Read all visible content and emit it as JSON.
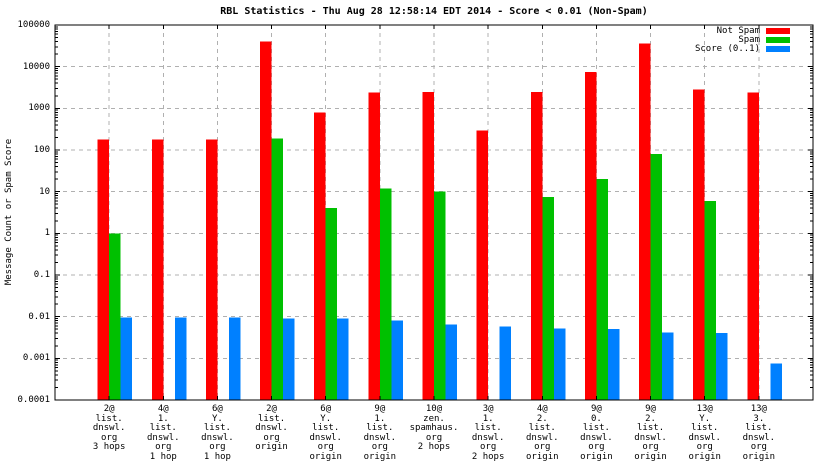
{
  "chart_data": {
    "type": "bar",
    "title": "RBL Statistics - Thu Aug 28 12:58:14 EDT 2014 - Score < 0.01 (Non-Spam)",
    "ylabel": "Message Count or Spam Score",
    "xlabel": "",
    "y_scale": "log",
    "ylim": [
      0.0001,
      100000
    ],
    "y_tick_labels": [
      "100000",
      "10000",
      "1000",
      "100",
      "10",
      "1",
      "0.1",
      "0.01",
      "0.001",
      "0.0001"
    ],
    "grid": true,
    "legend_position": "top-right-inside",
    "colors": {
      "axis": "#000000",
      "grid": "#b0b0b0",
      "background": "#ffffff"
    },
    "series": [
      {
        "name": "Not Spam",
        "key": "not_spam",
        "color": "#ff0000"
      },
      {
        "name": "Spam",
        "key": "spam",
        "color": "#00c000"
      },
      {
        "name": "Score (0..1)",
        "key": "score",
        "color": "#0080ff"
      }
    ],
    "groups": [
      {
        "label_lines": [
          "2@",
          "list.",
          "dnswl.",
          "org",
          "3 hops"
        ],
        "not_spam": 180,
        "spam": 1.0,
        "score": 0.0095
      },
      {
        "label_lines": [
          "4@",
          "1.",
          "list.",
          "dnswl.",
          "org",
          "1 hop"
        ],
        "not_spam": 180,
        "spam": null,
        "score": 0.0095
      },
      {
        "label_lines": [
          "6@",
          "Y.",
          "list.",
          "dnswl.",
          "org",
          "1 hop"
        ],
        "not_spam": 180,
        "spam": null,
        "score": 0.0095
      },
      {
        "label_lines": [
          "2@",
          "list.",
          "dnswl.",
          "org",
          "origin"
        ],
        "not_spam": 40000,
        "spam": 190,
        "score": 0.009
      },
      {
        "label_lines": [
          "6@",
          "Y.",
          "list.",
          "dnswl.",
          "org",
          "origin"
        ],
        "not_spam": 790,
        "spam": 4,
        "score": 0.009
      },
      {
        "label_lines": [
          "9@",
          "1.",
          "list.",
          "dnswl.",
          "org",
          "origin"
        ],
        "not_spam": 2400,
        "spam": 12,
        "score": 0.008
      },
      {
        "label_lines": [
          "10@",
          "zen.",
          "spamhaus.",
          "org",
          "2 hops"
        ],
        "not_spam": 2500,
        "spam": 10,
        "score": 0.0065
      },
      {
        "label_lines": [
          "3@",
          "1.",
          "list.",
          "dnswl.",
          "org",
          "2 hops"
        ],
        "not_spam": 290,
        "spam": null,
        "score": 0.0058
      },
      {
        "label_lines": [
          "4@",
          "2.",
          "list.",
          "dnswl.",
          "org",
          "origin"
        ],
        "not_spam": 2500,
        "spam": 7.5,
        "score": 0.0052
      },
      {
        "label_lines": [
          "9@",
          "0.",
          "list.",
          "dnswl.",
          "org",
          "origin"
        ],
        "not_spam": 7500,
        "spam": 20,
        "score": 0.005
      },
      {
        "label_lines": [
          "9@",
          "2.",
          "list.",
          "dnswl.",
          "org",
          "origin"
        ],
        "not_spam": 36000,
        "spam": 80,
        "score": 0.0042
      },
      {
        "label_lines": [
          "13@",
          "Y.",
          "list.",
          "dnswl.",
          "org",
          "origin"
        ],
        "not_spam": 2800,
        "spam": 6,
        "score": 0.004
      },
      {
        "label_lines": [
          "13@",
          "3.",
          "list.",
          "dnswl.",
          "org",
          "origin"
        ],
        "not_spam": 2400,
        "spam": null,
        "score": 0.00075
      }
    ]
  }
}
